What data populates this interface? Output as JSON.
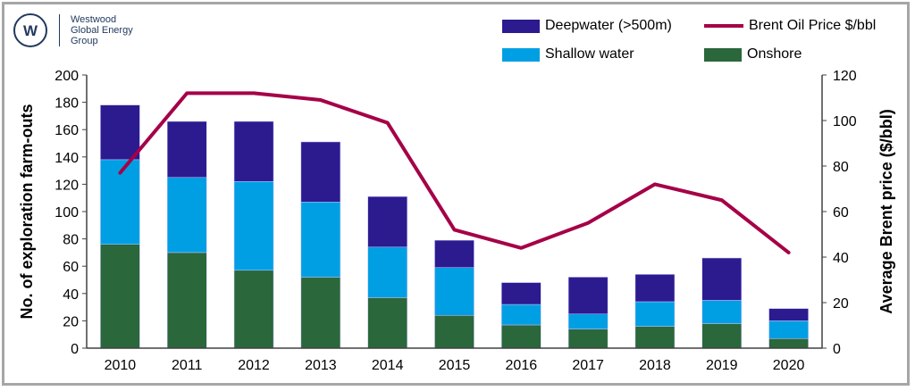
{
  "logo": {
    "line1": "Westwood",
    "line2": "Global Energy",
    "line3": "Group"
  },
  "colors": {
    "deepwater": "#2b1b8f",
    "shallow": "#009fe3",
    "onshore": "#2a673a",
    "brent": "#a50048"
  },
  "chart_data": {
    "type": "bar",
    "stacked": true,
    "categories": [
      "2010",
      "2011",
      "2012",
      "2013",
      "2014",
      "2015",
      "2016",
      "2017",
      "2018",
      "2019",
      "2020"
    ],
    "series": [
      {
        "name": "Onshore",
        "axis": "left",
        "values": [
          76,
          70,
          57,
          52,
          37,
          24,
          17,
          14,
          16,
          18,
          7
        ]
      },
      {
        "name": "Shallow water",
        "axis": "left",
        "values": [
          62,
          55,
          65,
          55,
          37,
          35,
          15,
          11,
          18,
          17,
          13
        ]
      },
      {
        "name": "Deepwater (>500m)",
        "axis": "left",
        "values": [
          40,
          41,
          44,
          44,
          37,
          20,
          16,
          27,
          20,
          31,
          9
        ]
      },
      {
        "name": "Brent Oil Price $/bbl",
        "axis": "right",
        "type": "line",
        "values": [
          77,
          112,
          112,
          109,
          99,
          52,
          44,
          55,
          72,
          65,
          42
        ]
      }
    ],
    "ylabel": "No. of exploration farm-outs",
    "ylabel_right": "Average Brent price ($/bbl)",
    "ylim": [
      0,
      200
    ],
    "yticks": [
      "0",
      "20",
      "40",
      "60",
      "80",
      "100",
      "120",
      "140",
      "160",
      "180",
      "200"
    ],
    "ylim_right": [
      0,
      120
    ],
    "yticks_right": [
      "0",
      "20",
      "40",
      "60",
      "80",
      "100",
      "120"
    ],
    "grid": false,
    "legend": "top-right"
  }
}
